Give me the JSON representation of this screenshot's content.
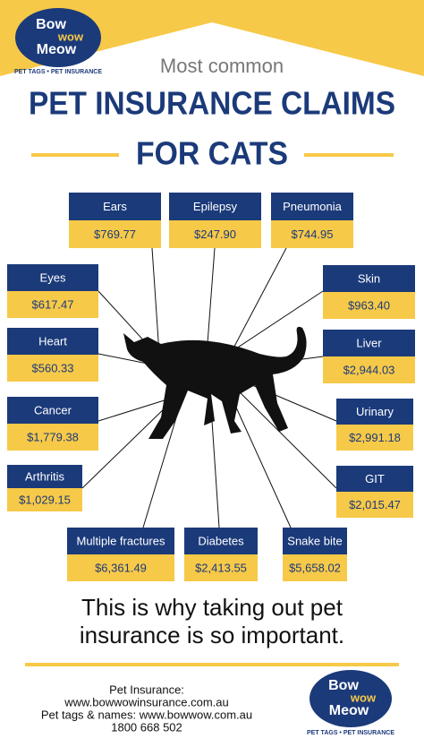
{
  "logo": {
    "line1": "Bow",
    "line2": "wow",
    "line3": "Meow",
    "tagline": "PET TAGS • PET INSURANCE"
  },
  "header": {
    "kicker": "Most common",
    "title_line1": "PET INSURANCE CLAIMS",
    "title_line2": "FOR CATS"
  },
  "claims": [
    {
      "label": "Ears",
      "amount": "$769.77"
    },
    {
      "label": "Epilepsy",
      "amount": "$247.90"
    },
    {
      "label": "Pneumonia",
      "amount": "$744.95"
    },
    {
      "label": "Eyes",
      "amount": "$617.47"
    },
    {
      "label": "Skin",
      "amount": "$963.40"
    },
    {
      "label": "Heart",
      "amount": "$560.33"
    },
    {
      "label": "Liver",
      "amount": "$2,944.03"
    },
    {
      "label": "Cancer",
      "amount": "$1,779.38"
    },
    {
      "label": "Urinary",
      "amount": "$2,991.18"
    },
    {
      "label": "Arthritis",
      "amount": "$1,029.15"
    },
    {
      "label": "GIT",
      "amount": "$2,015.47"
    },
    {
      "label": "Multiple fractures",
      "amount": "$6,361.49"
    },
    {
      "label": "Diabetes",
      "amount": "$2,413.55"
    },
    {
      "label": "Snake bite",
      "amount": "$5,658.02"
    }
  ],
  "message": {
    "line1": "This is why taking out pet",
    "line2": "insurance is so important."
  },
  "footer": {
    "lines": [
      "Pet Insurance:",
      "www.bowwowinsurance.com.au",
      "Pet tags & names: www.bowwow.com.au",
      "1800 668 502"
    ]
  }
}
